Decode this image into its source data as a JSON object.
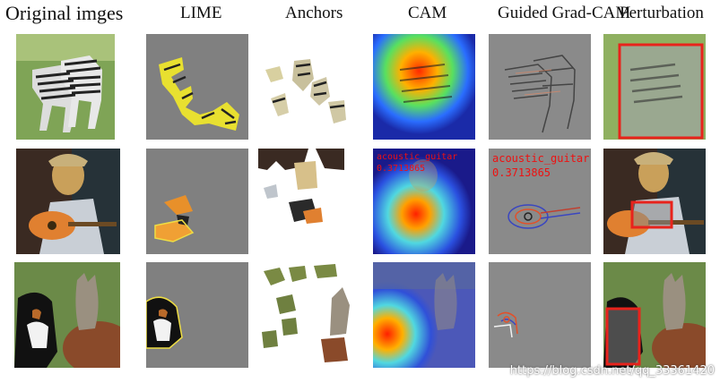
{
  "headers": [
    "Original imges",
    "LIME",
    "Anchors",
    "CAM",
    "Guided Grad-CAM",
    "Perturbation"
  ],
  "rows": [
    {
      "subject": "zebras",
      "cam_label": "",
      "cam_score": "",
      "grad_label": "",
      "grad_score": ""
    },
    {
      "subject": "dog playing guitar",
      "cam_label": "acoustic_guitar",
      "cam_score": "0.3713865",
      "grad_label": "acoustic_guitar",
      "grad_score": "0.3713865"
    },
    {
      "subject": "dog and cat",
      "cam_label": "",
      "cam_score": "",
      "grad_label": "",
      "grad_score": ""
    }
  ],
  "watermark": "https://blog.csdn.net/qq_33361420"
}
